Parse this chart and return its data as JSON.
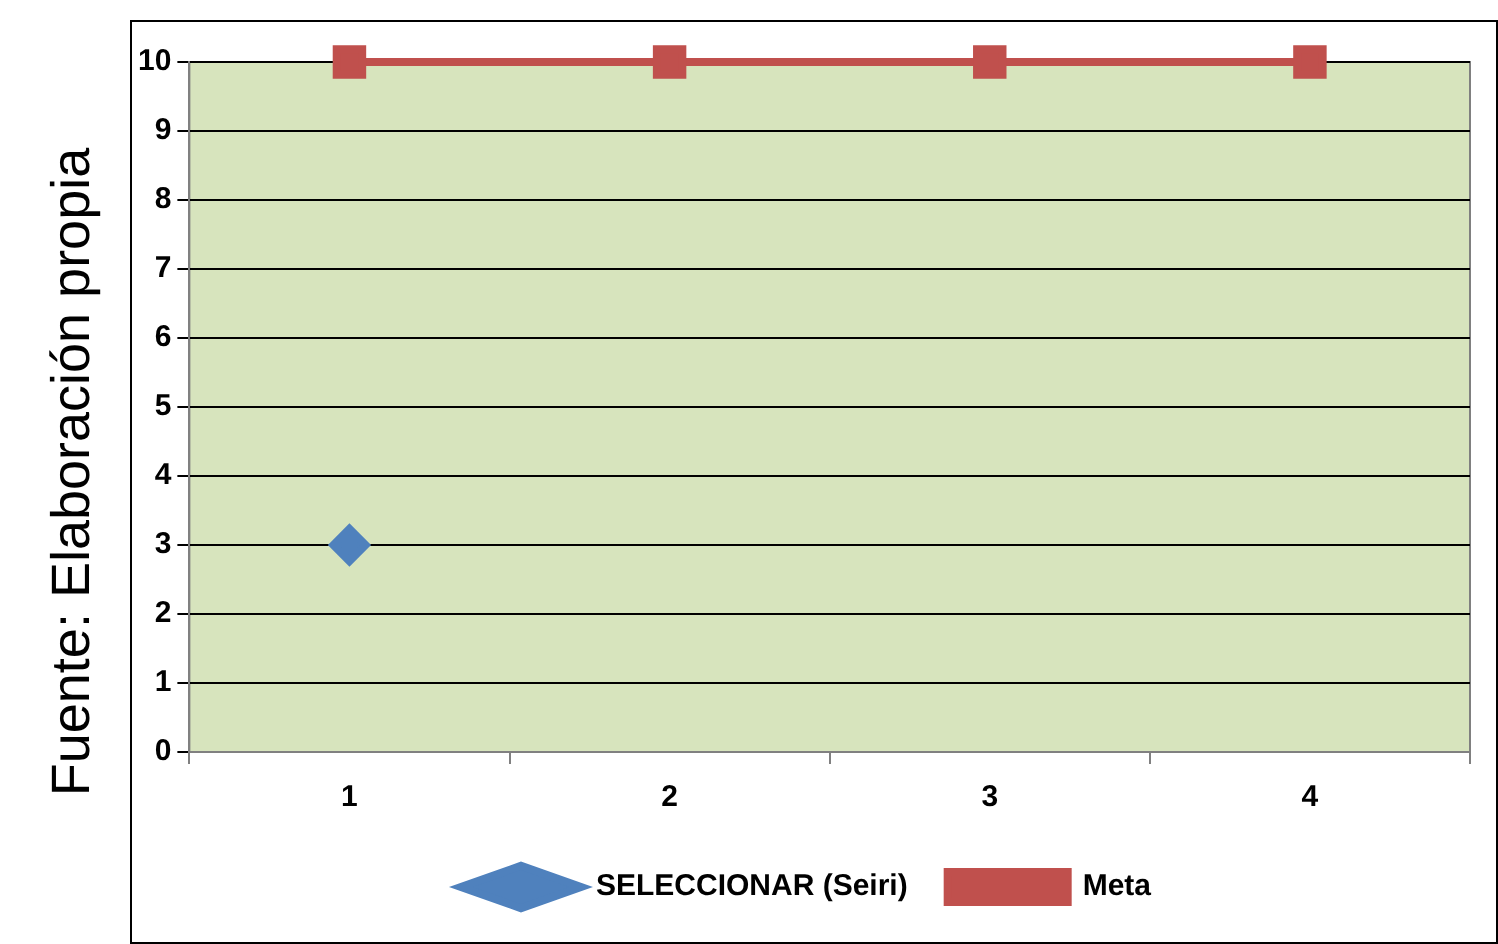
{
  "chart_data": {
    "type": "line",
    "categories": [
      "1",
      "2",
      "3",
      "4"
    ],
    "series": [
      {
        "name": "SELECCIONAR (Seiri)",
        "color": "#4f81bd",
        "marker": "diamond",
        "values": [
          3,
          null,
          null,
          null
        ]
      },
      {
        "name": "Meta",
        "color": "#c0504d",
        "marker": "square",
        "values": [
          10,
          10,
          10,
          10
        ]
      }
    ],
    "ylim": [
      0,
      10
    ],
    "yticks": [
      0,
      1,
      2,
      3,
      4,
      5,
      6,
      7,
      8,
      9,
      10
    ],
    "grid": "y",
    "legend": "bottom",
    "annotations": [
      "Fuente: Elaboración propia"
    ]
  }
}
